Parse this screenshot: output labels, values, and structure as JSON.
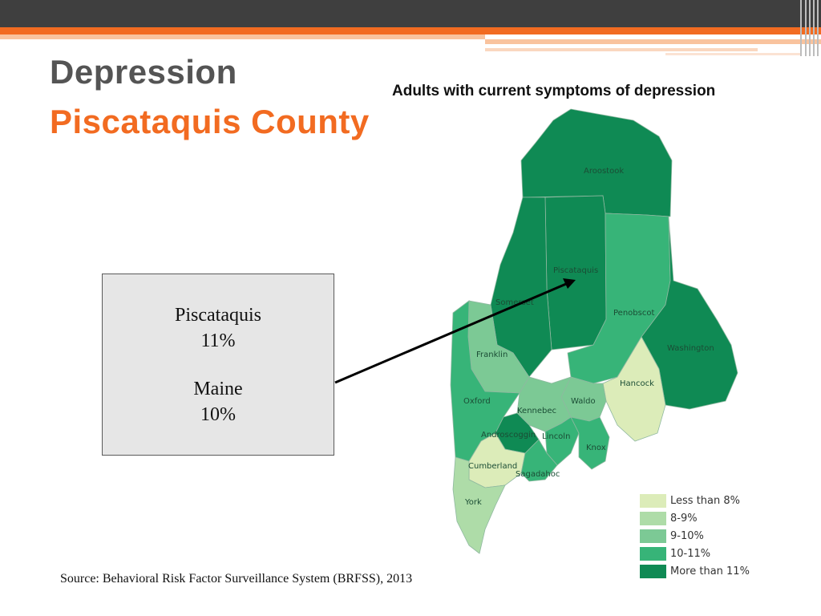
{
  "slide": {
    "title": "Depression",
    "subtitle": "Piscataquis County"
  },
  "map": {
    "title": "Adults with current symptoms of depression",
    "counties": [
      {
        "name": "Aroostook",
        "category": "More than 11%"
      },
      {
        "name": "Piscataquis",
        "category": "More than 11%"
      },
      {
        "name": "Somerset",
        "category": "More than 11%"
      },
      {
        "name": "Penobscot",
        "category": "10-11%"
      },
      {
        "name": "Washington",
        "category": "More than 11%"
      },
      {
        "name": "Franklin",
        "category": "9-10%"
      },
      {
        "name": "Hancock",
        "category": "Less than 8%"
      },
      {
        "name": "Oxford",
        "category": "10-11%"
      },
      {
        "name": "Waldo",
        "category": "9-10%"
      },
      {
        "name": "Kennebec",
        "category": "9-10%"
      },
      {
        "name": "Androscoggin",
        "category": "More than 11%"
      },
      {
        "name": "Lincoln",
        "category": "10-11%"
      },
      {
        "name": "Knox",
        "category": "10-11%"
      },
      {
        "name": "Cumberland",
        "category": "Less than 8%"
      },
      {
        "name": "Sagadahoc",
        "category": "10-11%"
      },
      {
        "name": "York",
        "category": "8-9%"
      }
    ],
    "legend": [
      {
        "label": "Less than 8%",
        "color": "#dcecb9"
      },
      {
        "label": "8-9%",
        "color": "#aedca8"
      },
      {
        "label": "9-10%",
        "color": "#7cc995"
      },
      {
        "label": "10-11%",
        "color": "#37b478"
      },
      {
        "label": "More than 11%",
        "color": "#0f8a54"
      }
    ]
  },
  "callout": {
    "county_name": "Piscataquis",
    "county_value": "11%",
    "state_name": "Maine",
    "state_value": "10%"
  },
  "source": "Source:  Behavioral Risk Factor Surveillance System (BRFSS), 2013"
}
